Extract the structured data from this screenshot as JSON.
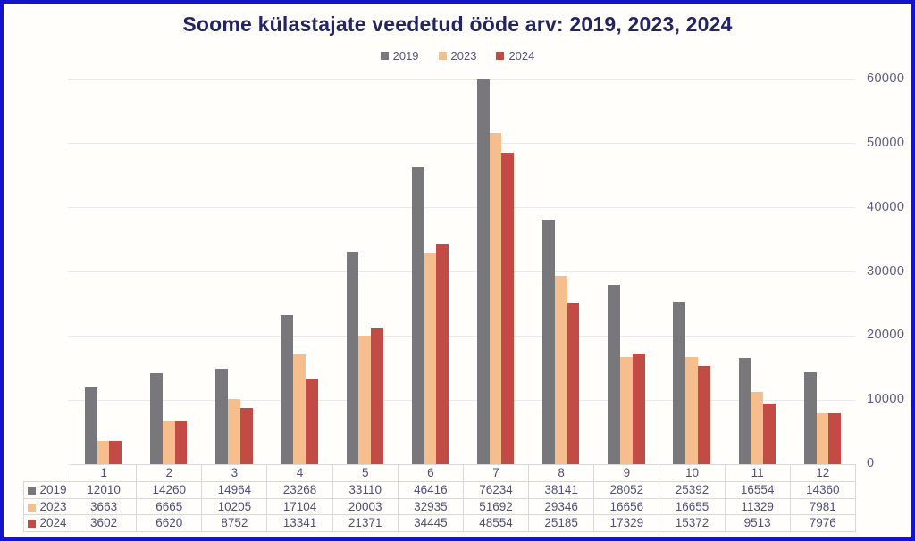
{
  "window": {
    "border_color": "#1414cc",
    "background": "#fffefb"
  },
  "title": "Soome külastajate veedetud ööde arv: 2019, 2023, 2024",
  "chart_data": {
    "type": "bar",
    "title": "Soome külastajate veedetud ööde arv: 2019, 2023, 2024",
    "categories": [
      "1",
      "2",
      "3",
      "4",
      "5",
      "6",
      "7",
      "8",
      "9",
      "10",
      "11",
      "12"
    ],
    "series": [
      {
        "name": "2019",
        "color": "#77777c",
        "values": [
          12010,
          14260,
          14964,
          23268,
          33110,
          46416,
          76234,
          38141,
          28052,
          25392,
          16554,
          14360
        ]
      },
      {
        "name": "2023",
        "color": "#f7be8d",
        "values": [
          3663,
          6665,
          10205,
          17104,
          20003,
          32935,
          51692,
          29346,
          16656,
          16655,
          11329,
          7981
        ]
      },
      {
        "name": "2024",
        "color": "#c24b45",
        "values": [
          3602,
          6620,
          8752,
          13341,
          21371,
          34445,
          48554,
          25185,
          17329,
          15372,
          9513,
          7976
        ]
      }
    ],
    "ylim": [
      0,
      60000
    ],
    "yticks": [
      0,
      10000,
      20000,
      30000,
      40000,
      50000,
      60000
    ],
    "ytick_labels": [
      "0",
      "10000",
      "20000",
      "30000",
      "40000",
      "50000",
      "60000"
    ],
    "ytick_side": "right",
    "legend_position": "top-center",
    "grid": "horizontal",
    "clip_to_ylim": true,
    "value_table_below_axis": true
  }
}
